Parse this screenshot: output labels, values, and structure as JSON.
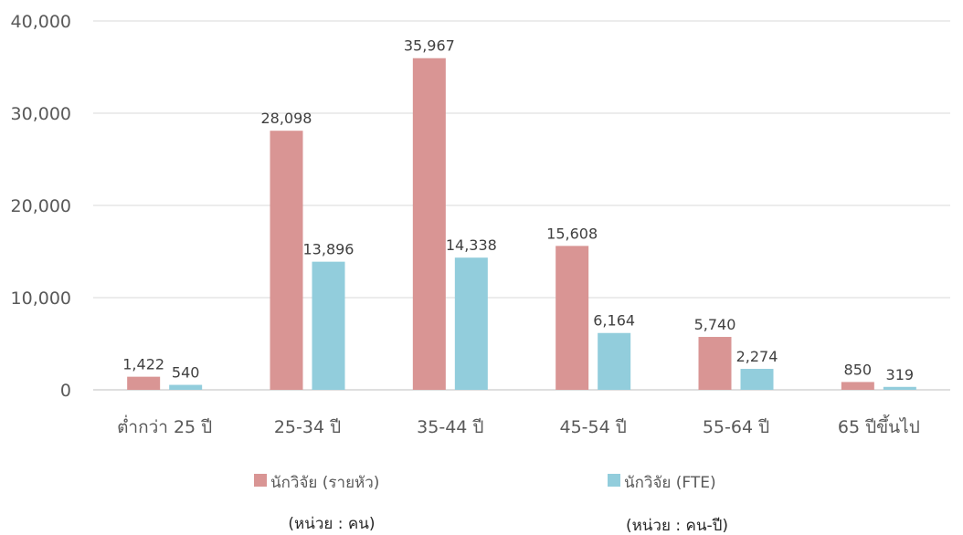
{
  "chart_data": {
    "type": "bar",
    "categories": [
      "ต่ำกว่า 25 ปี",
      "25-34 ปี",
      "35-44 ปี",
      "45-54 ปี",
      "55-64 ปี",
      "65 ปีขึ้นไป"
    ],
    "series": [
      {
        "name": "นักวิจัย (รายหัว)",
        "values": [
          1422,
          28098,
          35967,
          15608,
          5740,
          850
        ],
        "labels": [
          "1,422",
          "28,098",
          "35,967",
          "15,608",
          "5,740",
          "850"
        ],
        "color": "#d99594"
      },
      {
        "name": "นักวิจัย (FTE)",
        "values": [
          540,
          13896,
          14338,
          6164,
          2274,
          319
        ],
        "labels": [
          "540",
          "13,896",
          "14,338",
          "6,164",
          "2,274",
          "319"
        ],
        "color": "#92cddc"
      }
    ],
    "ylim": [
      0,
      40000
    ],
    "yticks": [
      0,
      10000,
      20000,
      30000,
      40000
    ],
    "ytick_labels": [
      "0",
      "10,000",
      "20,000",
      "30,000",
      "40,000"
    ],
    "grid": true,
    "legend_position": "bottom",
    "units": [
      "(หน่วย : คน)",
      "(หน่วย : คน-ปี)"
    ],
    "colors": {
      "grid": "#d9d9d9",
      "axis": "#bfbfbf"
    }
  }
}
